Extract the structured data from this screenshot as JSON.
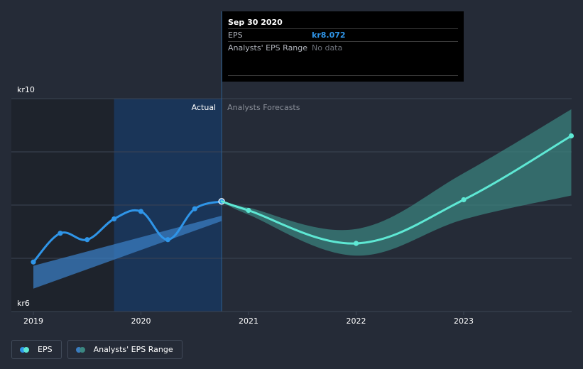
{
  "chart_data": {
    "type": "line",
    "y_unit_prefix": "kr",
    "ylim": [
      6,
      10
    ],
    "y_tick_labels": [
      {
        "value": 10,
        "label": "kr10"
      },
      {
        "value": 6,
        "label": "kr6"
      }
    ],
    "gridlines_y": [
      10,
      9,
      8,
      7,
      6
    ],
    "x_ticks": [
      {
        "value": 2019,
        "label": "2019"
      },
      {
        "value": 2020,
        "label": "2020"
      },
      {
        "value": 2021,
        "label": "2021"
      },
      {
        "value": 2022,
        "label": "2022"
      },
      {
        "value": 2023,
        "label": "2023"
      }
    ],
    "xlim": [
      2018.82,
      2024.0
    ],
    "divider_x": 2020.75,
    "actual_label": "Actual",
    "forecast_label": "Analysts Forecasts",
    "series": [
      {
        "name": "EPS",
        "color": "#2f95e8",
        "points": [
          {
            "x": 2019.0,
            "y": 6.93
          },
          {
            "x": 2019.25,
            "y": 7.47
          },
          {
            "x": 2019.5,
            "y": 7.35
          },
          {
            "x": 2019.75,
            "y": 7.74
          },
          {
            "x": 2020.0,
            "y": 7.88
          },
          {
            "x": 2020.25,
            "y": 7.35
          },
          {
            "x": 2020.5,
            "y": 7.93
          },
          {
            "x": 2020.75,
            "y": 8.07
          }
        ]
      },
      {
        "name": "EPS Forecast",
        "color": "#5ee8d4",
        "points": [
          {
            "x": 2020.75,
            "y": 8.07
          },
          {
            "x": 2021.0,
            "y": 7.9
          },
          {
            "x": 2022.0,
            "y": 7.28
          },
          {
            "x": 2023.0,
            "y": 8.1
          },
          {
            "x": 2024.0,
            "y": 9.3
          }
        ]
      }
    ],
    "ranges": [
      {
        "name": "Analysts' EPS Range (past)",
        "color": "#3a7cc0",
        "upper": [
          {
            "x": 2019.0,
            "y": 6.86
          },
          {
            "x": 2020.75,
            "y": 7.8
          }
        ],
        "lower": [
          {
            "x": 2019.0,
            "y": 6.43
          },
          {
            "x": 2020.75,
            "y": 7.7
          }
        ]
      },
      {
        "name": "Analysts' EPS Range (forecast)",
        "color": "#3b8781",
        "upper": [
          {
            "x": 2020.75,
            "y": 8.07
          },
          {
            "x": 2021.0,
            "y": 7.95
          },
          {
            "x": 2022.0,
            "y": 7.55
          },
          {
            "x": 2023.0,
            "y": 8.6
          },
          {
            "x": 2024.0,
            "y": 9.8
          }
        ],
        "lower": [
          {
            "x": 2020.75,
            "y": 8.07
          },
          {
            "x": 2021.0,
            "y": 7.82
          },
          {
            "x": 2022.0,
            "y": 7.05
          },
          {
            "x": 2023.0,
            "y": 7.73
          },
          {
            "x": 2024.0,
            "y": 8.18
          }
        ]
      }
    ]
  },
  "tooltip": {
    "date": "Sep 30 2020",
    "rows": [
      {
        "label": "EPS",
        "value": "kr8.072"
      },
      {
        "label": "Analysts' EPS Range",
        "value": "No data"
      }
    ]
  },
  "legend": {
    "items": [
      {
        "label": "EPS",
        "color_a": "#2f95e8",
        "color_b": "#5ee8d4"
      },
      {
        "label": "Analysts' EPS Range",
        "color_a": "#3a7cc0",
        "color_b": "#3b8781"
      }
    ]
  },
  "colors": {
    "background": "#252b37",
    "grid": "#3c4453",
    "highlight_band": "#1a3558",
    "past_shade": "#1e232c",
    "axis_text": "#ffffff",
    "muted_text": "#8a8f99"
  }
}
